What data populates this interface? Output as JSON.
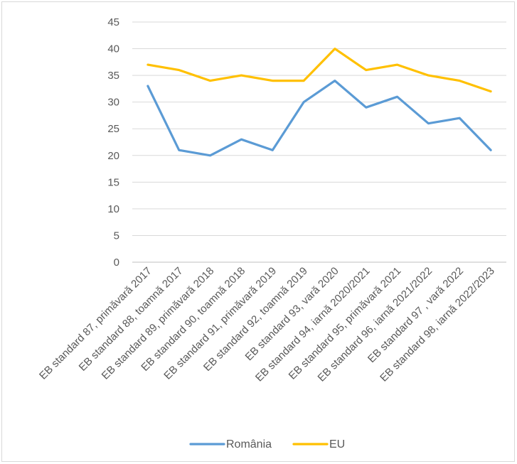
{
  "chart_data": {
    "type": "line",
    "title": "",
    "xlabel": "",
    "ylabel": "",
    "ylim": [
      0,
      45
    ],
    "y_ticks": [
      0,
      5,
      10,
      15,
      20,
      25,
      30,
      35,
      40,
      45
    ],
    "grid": "horizontal",
    "legend_position": "bottom",
    "categories": [
      "EB standard 87, primăvară 2017",
      "EB standard 88, toamnă 2017",
      "EB standard 89, primăvară 2018",
      "EB standard 90, toamnă 2018",
      "EB standard 91, primăvară 2019",
      "EB standard 92, toamnă 2019",
      "EB standard 93, vară 2020",
      "EB standard 94, iarnă 2020/2021",
      "EB standard 95, primăvară 2021",
      "EB standard 96, iarnă 2021/2022",
      "EB standard 97 , vară 2022",
      "EB standard 98, iarnă 2022/2023"
    ],
    "series": [
      {
        "name": "România",
        "color": "#5b9bd5",
        "values": [
          33,
          21,
          20,
          23,
          21,
          30,
          34,
          29,
          31,
          26,
          27,
          21
        ]
      },
      {
        "name": "EU",
        "color": "#ffc000",
        "values": [
          37,
          36,
          34,
          35,
          34,
          34,
          40,
          36,
          37,
          35,
          34,
          32
        ]
      }
    ]
  }
}
